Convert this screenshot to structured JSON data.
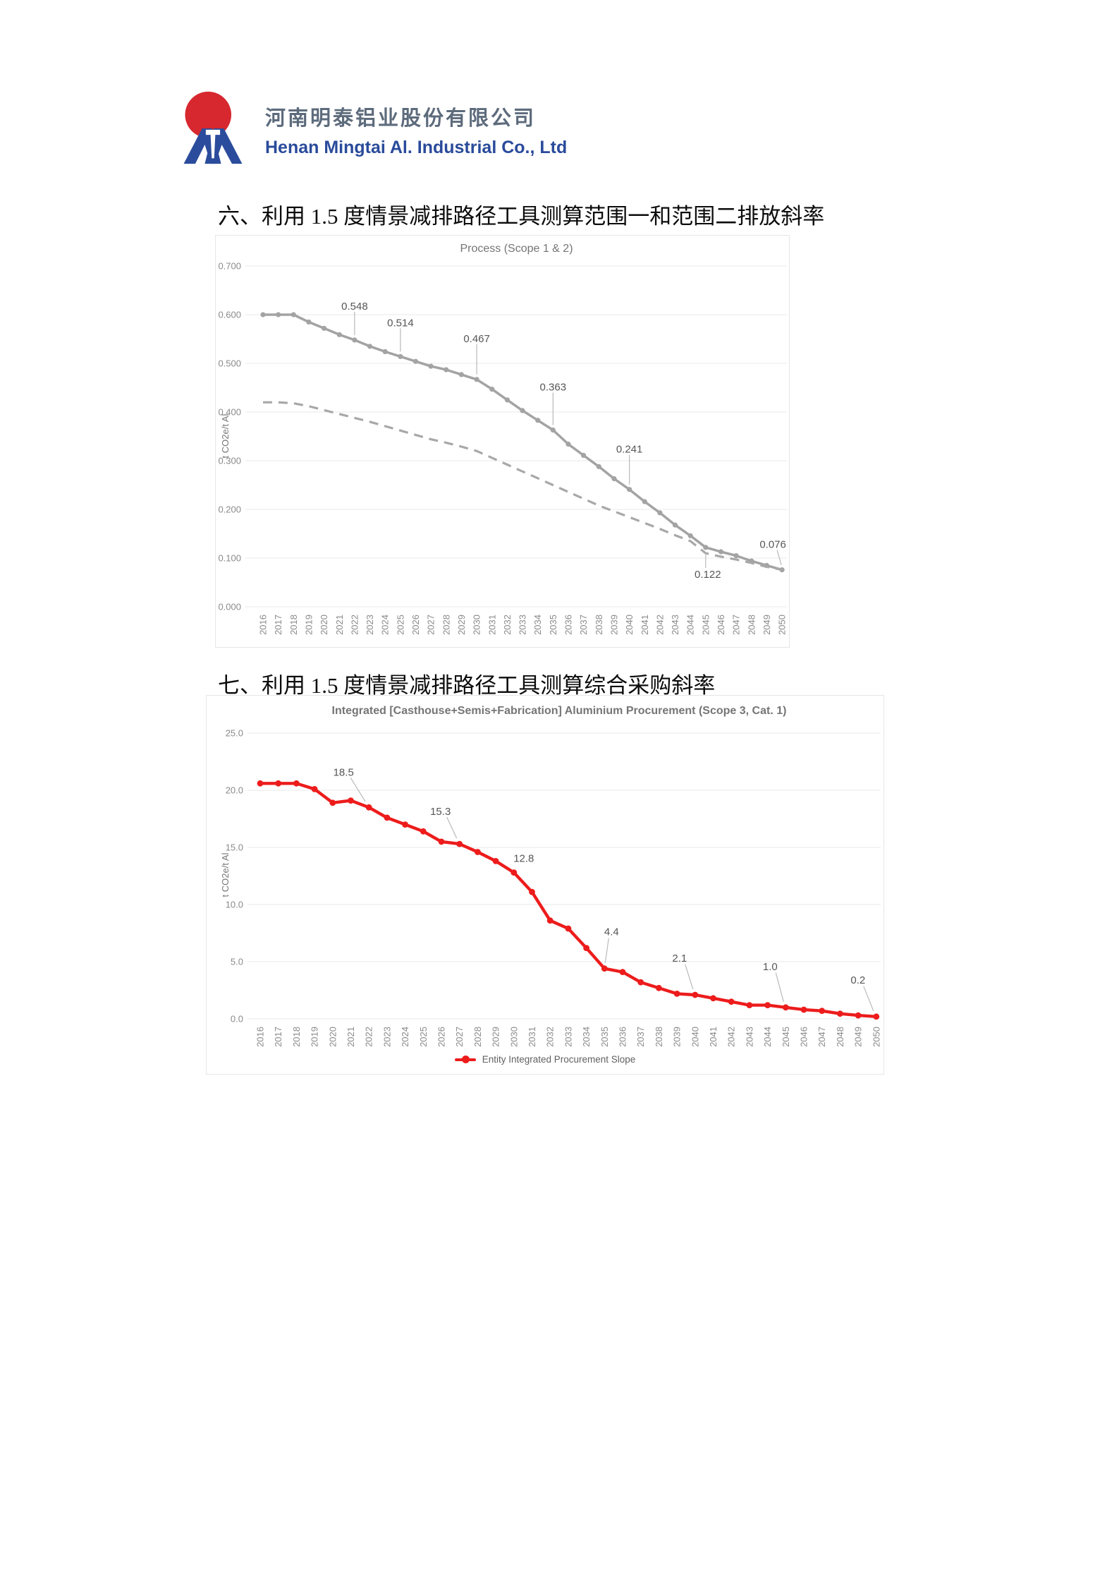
{
  "page": {
    "background": "#ffffff"
  },
  "header": {
    "logo": {
      "company_cn": "河南明泰铝业股份有限公司",
      "company_en": "Henan Mingtai Al. Industrial Co., Ltd",
      "icon_colors": {
        "sun_red": "#d7282f",
        "m_blue": "#2b4c9c"
      }
    }
  },
  "sections": [
    {
      "heading": "六、利用 1.5 度情景减排路径工具测算范围一和范围二排放斜率"
    },
    {
      "heading": "七、利用 1.5 度情景减排路径工具测算综合采购斜率"
    }
  ],
  "chart_data": [
    {
      "type": "line",
      "title": "Process (Scope 1 & 2)",
      "xlabel": "",
      "ylabel": "t CO2e/t Al",
      "ylim": [
        0,
        0.7
      ],
      "grid": true,
      "legend": null,
      "yticks": [
        "0.000",
        "0.100",
        "0.200",
        "0.300",
        "0.400",
        "0.500",
        "0.600",
        "0.700"
      ],
      "categories": [
        "2016",
        "2017",
        "2018",
        "2019",
        "2020",
        "2021",
        "2022",
        "2023",
        "2024",
        "2025",
        "2026",
        "2027",
        "2028",
        "2029",
        "2030",
        "2031",
        "2032",
        "2033",
        "2034",
        "2035",
        "2036",
        "2037",
        "2038",
        "2039",
        "2040",
        "2041",
        "2042",
        "2043",
        "2044",
        "2045",
        "2046",
        "2047",
        "2048",
        "2049",
        "2050"
      ],
      "series": [
        {
          "line_style": "solid",
          "color": "#a3a3a3",
          "markers": true,
          "values": [
            0.6,
            0.6,
            0.6,
            0.585,
            0.572,
            0.559,
            0.548,
            0.535,
            0.524,
            0.514,
            0.504,
            0.494,
            0.487,
            0.477,
            0.467,
            0.447,
            0.425,
            0.403,
            0.383,
            0.363,
            0.334,
            0.311,
            0.288,
            0.263,
            0.241,
            0.216,
            0.193,
            0.168,
            0.146,
            0.122,
            0.113,
            0.105,
            0.094,
            0.085,
            0.076
          ]
        },
        {
          "line_style": "dashed",
          "color": "#a8a8a8",
          "markers": false,
          "values": [
            0.42,
            0.42,
            0.418,
            0.412,
            0.404,
            0.396,
            0.388,
            0.38,
            0.371,
            0.362,
            0.353,
            0.344,
            0.337,
            0.329,
            0.32,
            0.306,
            0.292,
            0.278,
            0.264,
            0.25,
            0.236,
            0.222,
            0.208,
            0.196,
            0.184,
            0.172,
            0.16,
            0.147,
            0.135,
            0.11,
            0.103,
            0.097,
            0.09,
            0.082,
            0.076
          ]
        }
      ],
      "point_labels": [
        {
          "series": 0,
          "category": "2022",
          "text": "0.548"
        },
        {
          "series": 0,
          "category": "2025",
          "text": "0.514"
        },
        {
          "series": 0,
          "category": "2030",
          "text": "0.467"
        },
        {
          "series": 0,
          "category": "2035",
          "text": "0.363"
        },
        {
          "series": 0,
          "category": "2040",
          "text": "0.241"
        },
        {
          "series": 0,
          "category": "2045",
          "text": "0.122"
        },
        {
          "series": 0,
          "category": "2050",
          "text": "0.076"
        }
      ]
    },
    {
      "type": "line",
      "title": "Integrated [Casthouse+Semis+Fabrication] Aluminium Procurement (Scope 3, Cat. 1)",
      "xlabel": "",
      "ylabel": "t CO2e/t Al",
      "ylim": [
        0,
        25
      ],
      "grid": true,
      "legend": {
        "position": "bottom",
        "entries": [
          "Entity Integrated Procurement Slope"
        ]
      },
      "yticks": [
        "0.0",
        "5.0",
        "10.0",
        "15.0",
        "20.0",
        "25.0"
      ],
      "categories": [
        "2016",
        "2017",
        "2018",
        "2019",
        "2020",
        "2021",
        "2022",
        "2023",
        "2024",
        "2025",
        "2026",
        "2027",
        "2028",
        "2029",
        "2030",
        "2031",
        "2032",
        "2033",
        "2034",
        "2035",
        "2036",
        "2037",
        "2038",
        "2039",
        "2040",
        "2041",
        "2042",
        "2043",
        "2044",
        "2045",
        "2046",
        "2047",
        "2048",
        "2049",
        "2050"
      ],
      "series": [
        {
          "name": "Entity Integrated Procurement Slope",
          "line_style": "solid",
          "color": "#ed1c1c",
          "markers": true,
          "values": [
            20.6,
            20.6,
            20.6,
            20.1,
            18.9,
            19.1,
            18.5,
            17.6,
            17.0,
            16.4,
            15.5,
            15.3,
            14.6,
            13.8,
            12.8,
            11.1,
            8.6,
            7.9,
            6.2,
            4.4,
            4.1,
            3.2,
            2.7,
            2.2,
            2.1,
            1.8,
            1.5,
            1.2,
            1.2,
            1.0,
            0.8,
            0.7,
            0.45,
            0.3,
            0.2
          ]
        }
      ],
      "point_labels": [
        {
          "series": 0,
          "category": "2022",
          "text": "18.5"
        },
        {
          "series": 0,
          "category": "2027",
          "text": "15.3"
        },
        {
          "series": 0,
          "category": "2030",
          "text": "12.8"
        },
        {
          "series": 0,
          "category": "2035",
          "text": "4.4"
        },
        {
          "series": 0,
          "category": "2040",
          "text": "2.1"
        },
        {
          "series": 0,
          "category": "2045",
          "text": "1.0"
        },
        {
          "series": 0,
          "category": "2050",
          "text": "0.2"
        }
      ]
    }
  ]
}
